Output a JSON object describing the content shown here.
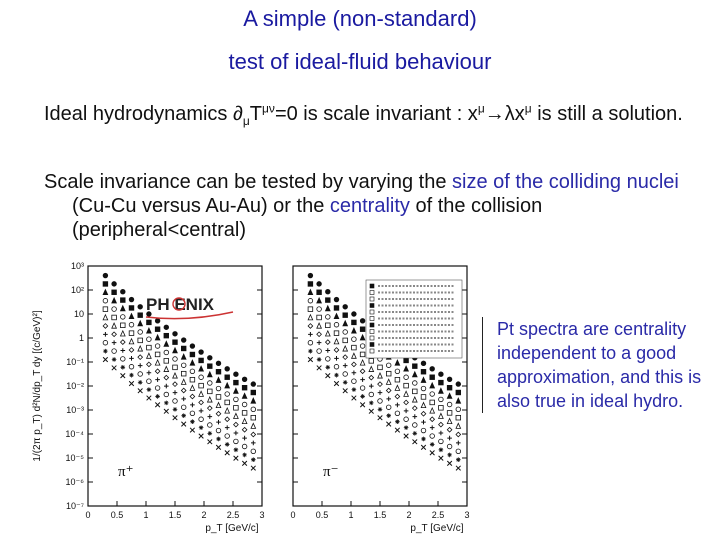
{
  "slide": {
    "title_line1": "A simple (non-standard)",
    "title_line2": "test of ideal-fluid behaviour",
    "para1": {
      "a": "Ideal hydrodynamics ∂",
      "sub_mu": "μ",
      "b": "T",
      "sup_munu": "μν",
      "c": "=0 is scale invariant : x",
      "sup_mu1": "μ",
      "d": "→λx",
      "sup_mu2": "μ",
      "e": " is still a solution."
    },
    "para2": {
      "a": "Scale invariance can be tested by varying the ",
      "hl1": "size of the colliding nuclei",
      "b": " (Cu-Cu versus Au-Au) or the ",
      "hl2": "centrality",
      "c": " of the collision (peripheral<central)"
    },
    "note": "Pt spectra are centrality independent to a good approximation, and this is also true in ideal hydro."
  },
  "chart_data": {
    "type": "scatter",
    "source_logo": "PH ENIX",
    "ylabel": "1/(2π p_T) d²N/dp_T dy [(c/GeV)²]",
    "xlabel": "p_T [GeV/c]",
    "y_scale": "log",
    "ylim": [
      1e-07,
      1000.0
    ],
    "y_ticks": [
      "10⁻⁷",
      "10⁻⁶",
      "10⁻⁵",
      "10⁻⁴",
      "10⁻³",
      "10⁻²",
      "10⁻¹",
      "1",
      "10",
      "10²",
      "10³"
    ],
    "xlim": [
      0,
      3
    ],
    "x_ticks": [
      "0",
      "0.5",
      "1",
      "1.5",
      "2",
      "2.5",
      "3"
    ],
    "panels": [
      {
        "particle": "π⁺"
      },
      {
        "particle": "π⁻"
      }
    ],
    "series_count": 11,
    "series_offsets_log10": [
      0.0,
      -0.35,
      -0.7,
      -1.05,
      -1.4,
      -1.75,
      -2.1,
      -2.45,
      -2.8,
      -3.15,
      -3.5
    ],
    "x": [
      0.3,
      0.45,
      0.6,
      0.75,
      0.9,
      1.05,
      1.2,
      1.35,
      1.5,
      1.65,
      1.8,
      1.95,
      2.1,
      2.25,
      2.4,
      2.55,
      2.7,
      2.85
    ],
    "base_values": [
      400,
      180,
      85,
      40,
      20,
      10,
      5.2,
      2.8,
      1.5,
      0.82,
      0.46,
      0.26,
      0.15,
      0.088,
      0.052,
      0.031,
      0.019,
      0.012
    ]
  }
}
